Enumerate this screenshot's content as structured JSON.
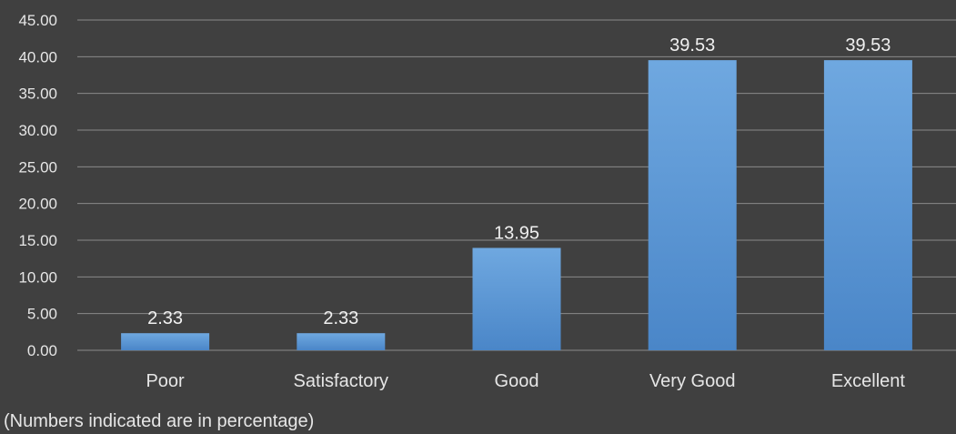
{
  "chart_data": {
    "type": "bar",
    "categories": [
      "Poor",
      "Satisfactory",
      "Good",
      "Very Good",
      "Excellent"
    ],
    "values": [
      2.33,
      2.33,
      13.95,
      39.53,
      39.53
    ],
    "data_labels": [
      "2.33",
      "2.33",
      "13.95",
      "39.53",
      "39.53"
    ],
    "ylim": [
      0,
      45
    ],
    "y_ticks": [
      "0.00",
      "5.00",
      "10.00",
      "15.00",
      "20.00",
      "25.00",
      "30.00",
      "35.00",
      "40.00",
      "45.00"
    ],
    "grid": true,
    "bar_color_top": "#6fa8e0",
    "bar_color_bottom": "#4a86c8",
    "background": "#404040",
    "gridline_color": "#8a8a8a",
    "text_color": "#e6e6e6"
  },
  "footnote": "(Numbers indicated are in percentage)"
}
